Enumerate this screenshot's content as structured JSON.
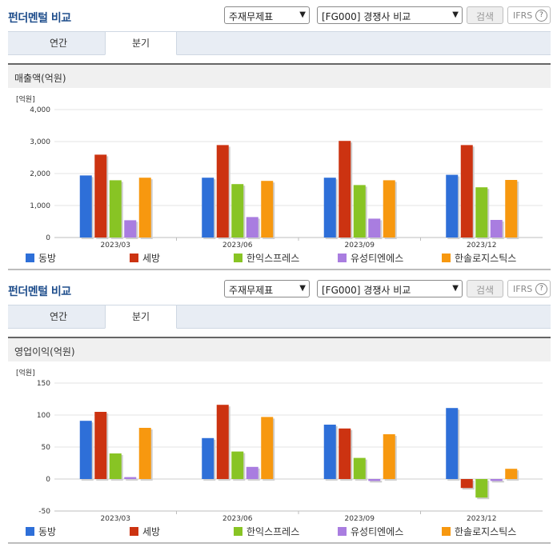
{
  "panels": [
    {
      "title": "펀더멘털 비교",
      "select1": "주재무제표",
      "select2": "[FG000] 경쟁사 비교",
      "search_label": "검색",
      "ifrs_label": "IFRS",
      "help_label": "?",
      "tabs": [
        {
          "label": "연간"
        },
        {
          "label": "분기"
        }
      ],
      "active_tab": "분기",
      "section_title": "매출액(억원)"
    },
    {
      "title": "펀더멘털 비교",
      "select1": "주재무제표",
      "select2": "[FG000] 경쟁사 비교",
      "search_label": "검색",
      "ifrs_label": "IFRS",
      "help_label": "?",
      "tabs": [
        {
          "label": "연간"
        },
        {
          "label": "분기"
        }
      ],
      "active_tab": "분기",
      "section_title": "영업이익(억원)"
    }
  ],
  "chart_data": [
    {
      "type": "bar",
      "unit_label": "[억원]",
      "categories": [
        "2023/03",
        "2023/06",
        "2023/09",
        "2023/12"
      ],
      "ylim": [
        0,
        4000
      ],
      "yticks": [
        0,
        1000,
        2000,
        3000,
        4000
      ],
      "ytick_labels": [
        "0",
        "1,000",
        "2,000",
        "3,000",
        "4,000"
      ],
      "grid": true,
      "legend_position": "bottom",
      "series": [
        {
          "name": "동방",
          "color": "#2e6fd8",
          "values": [
            1940,
            1870,
            1870,
            1960
          ]
        },
        {
          "name": "세방",
          "color": "#cc3311",
          "values": [
            2590,
            2890,
            3020,
            2890
          ]
        },
        {
          "name": "한익스프레스",
          "color": "#88c424",
          "values": [
            1790,
            1670,
            1640,
            1570
          ]
        },
        {
          "name": "유성티엔에스",
          "color": "#a97de0",
          "values": [
            540,
            640,
            590,
            550
          ]
        },
        {
          "name": "한솔로지스틱스",
          "color": "#f7980f",
          "values": [
            1870,
            1770,
            1790,
            1800
          ]
        }
      ]
    },
    {
      "type": "bar",
      "unit_label": "[억원]",
      "categories": [
        "2023/03",
        "2023/06",
        "2023/09",
        "2023/12"
      ],
      "ylim": [
        -50,
        150
      ],
      "yticks": [
        -50,
        0,
        50,
        100,
        150
      ],
      "ytick_labels": [
        "-50",
        "0",
        "50",
        "100",
        "150"
      ],
      "grid": true,
      "legend_position": "bottom",
      "series": [
        {
          "name": "동방",
          "color": "#2e6fd8",
          "values": [
            91,
            64,
            85,
            111
          ]
        },
        {
          "name": "세방",
          "color": "#cc3311",
          "values": [
            105,
            116,
            79,
            -14
          ]
        },
        {
          "name": "한익스프레스",
          "color": "#88c424",
          "values": [
            40,
            43,
            33,
            -29
          ]
        },
        {
          "name": "유성티엔에스",
          "color": "#a97de0",
          "values": [
            3,
            19,
            -3,
            -3
          ]
        },
        {
          "name": "한솔로지스틱스",
          "color": "#f7980f",
          "values": [
            80,
            97,
            70,
            16
          ]
        }
      ]
    }
  ]
}
